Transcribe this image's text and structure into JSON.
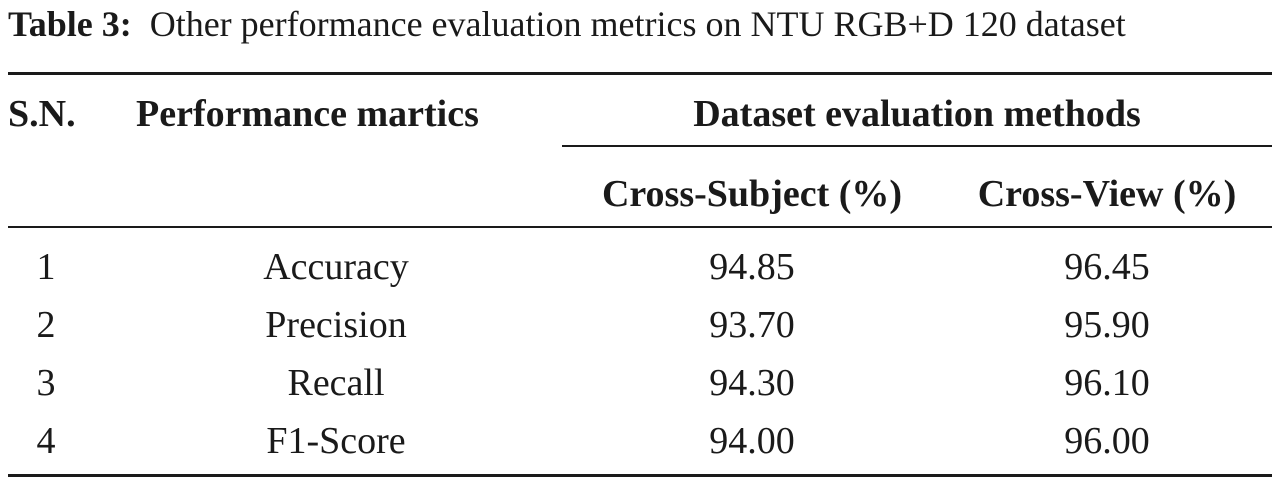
{
  "caption": {
    "label": "Table 3:",
    "text": "Other performance evaluation metrics on NTU RGB+D 120 dataset"
  },
  "table": {
    "headers": {
      "sn": "S.N.",
      "metric": "Performance martics",
      "group": "Dataset evaluation methods",
      "cross_subject": "Cross-Subject (%)",
      "cross_view": "Cross-View (%)"
    },
    "rows": [
      {
        "sn": "1",
        "metric": "Accuracy",
        "cross_subject": "94.85",
        "cross_view": "96.45"
      },
      {
        "sn": "2",
        "metric": "Precision",
        "cross_subject": "93.70",
        "cross_view": "95.90"
      },
      {
        "sn": "3",
        "metric": "Recall",
        "cross_subject": "94.30",
        "cross_view": "96.10"
      },
      {
        "sn": "4",
        "metric": "F1-Score",
        "cross_subject": "94.00",
        "cross_view": "96.00"
      }
    ]
  }
}
